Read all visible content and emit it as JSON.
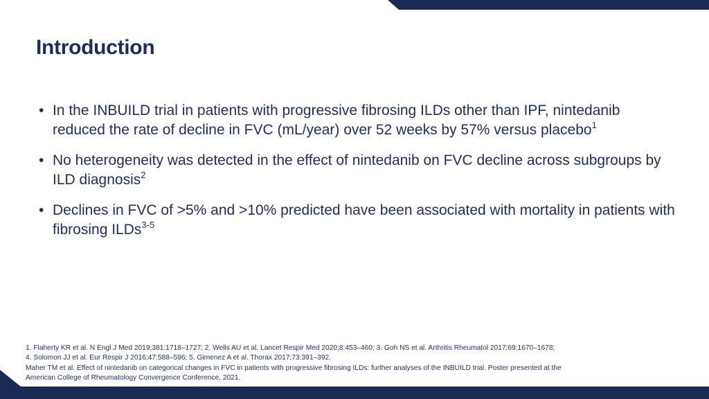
{
  "colors": {
    "navy": "#1f2d5c",
    "bar_dark": "#1b2a55"
  },
  "title": "Introduction",
  "bullets": [
    {
      "text": "In the INBUILD trial in patients with progressive fibrosing ILDs other than IPF, nintedanib reduced the rate of decline in FVC (mL/year) over 52 weeks by 57% versus placebo",
      "sup": "1"
    },
    {
      "text": "No heterogeneity was detected in the effect of nintedanib on FVC decline across subgroups by ILD diagnosis",
      "sup": "2"
    },
    {
      "text": "Declines in FVC of >5% and >10% predicted have been associated with mortality in patients with fibrosing ILDs",
      "sup": "3-5"
    }
  ],
  "bullet_symbol": "•",
  "references": [
    "1. Flaherty KR et al. N Engl J Med 2019;381:1718–1727; 2. Wells AU et al. Lancet Respir Med 2020;8:453–460; 3. Goh NS et al. Arthritis Rheumatol 2017;69:1670–1678;",
    "4. Solomon JJ et al. Eur Respir J 2016;47:588–596; 5. Gimenez A et al. Thorax 2017;73:391–392.",
    "Maher TM et al. Effect of nintedanib on categorical changes in FVC in patients with progressive fibrosing ILDs: further analyses of the INBUILD trial. Poster presented at the",
    "American College of Rheumatology Convergence Conference, 2021."
  ]
}
